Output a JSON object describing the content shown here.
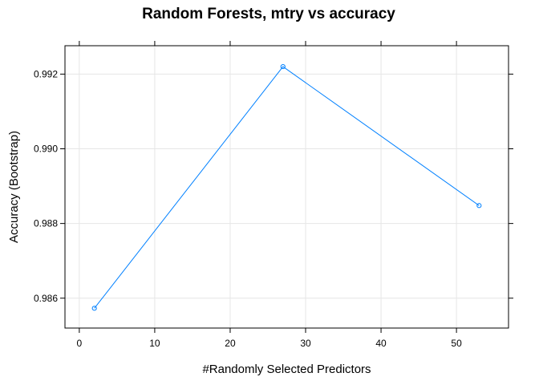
{
  "chart_data": {
    "type": "line",
    "title": "Random Forests, mtry vs accuracy",
    "xlabel": "#Randomly Selected Predictors",
    "ylabel": "Accuracy (Bootstrap)",
    "x": [
      2,
      27,
      53
    ],
    "series": [
      {
        "values": [
          0.98573,
          0.9922,
          0.98848
        ]
      }
    ],
    "xlim": [
      -1.9,
      56.9
    ],
    "ylim": [
      0.9852,
      0.99276
    ],
    "xticks": [
      0,
      10,
      20,
      30,
      40,
      50
    ],
    "xtick_labels": [
      "0",
      "10",
      "20",
      "30",
      "40",
      "50"
    ],
    "yticks": [
      0.986,
      0.988,
      0.99,
      0.992
    ],
    "ytick_labels": [
      "0.986",
      "0.988",
      "0.990",
      "0.992"
    ],
    "grid": true,
    "colors": {
      "line": "#0080ff",
      "grid": "#e6e6e6",
      "frame": "#000000"
    }
  }
}
